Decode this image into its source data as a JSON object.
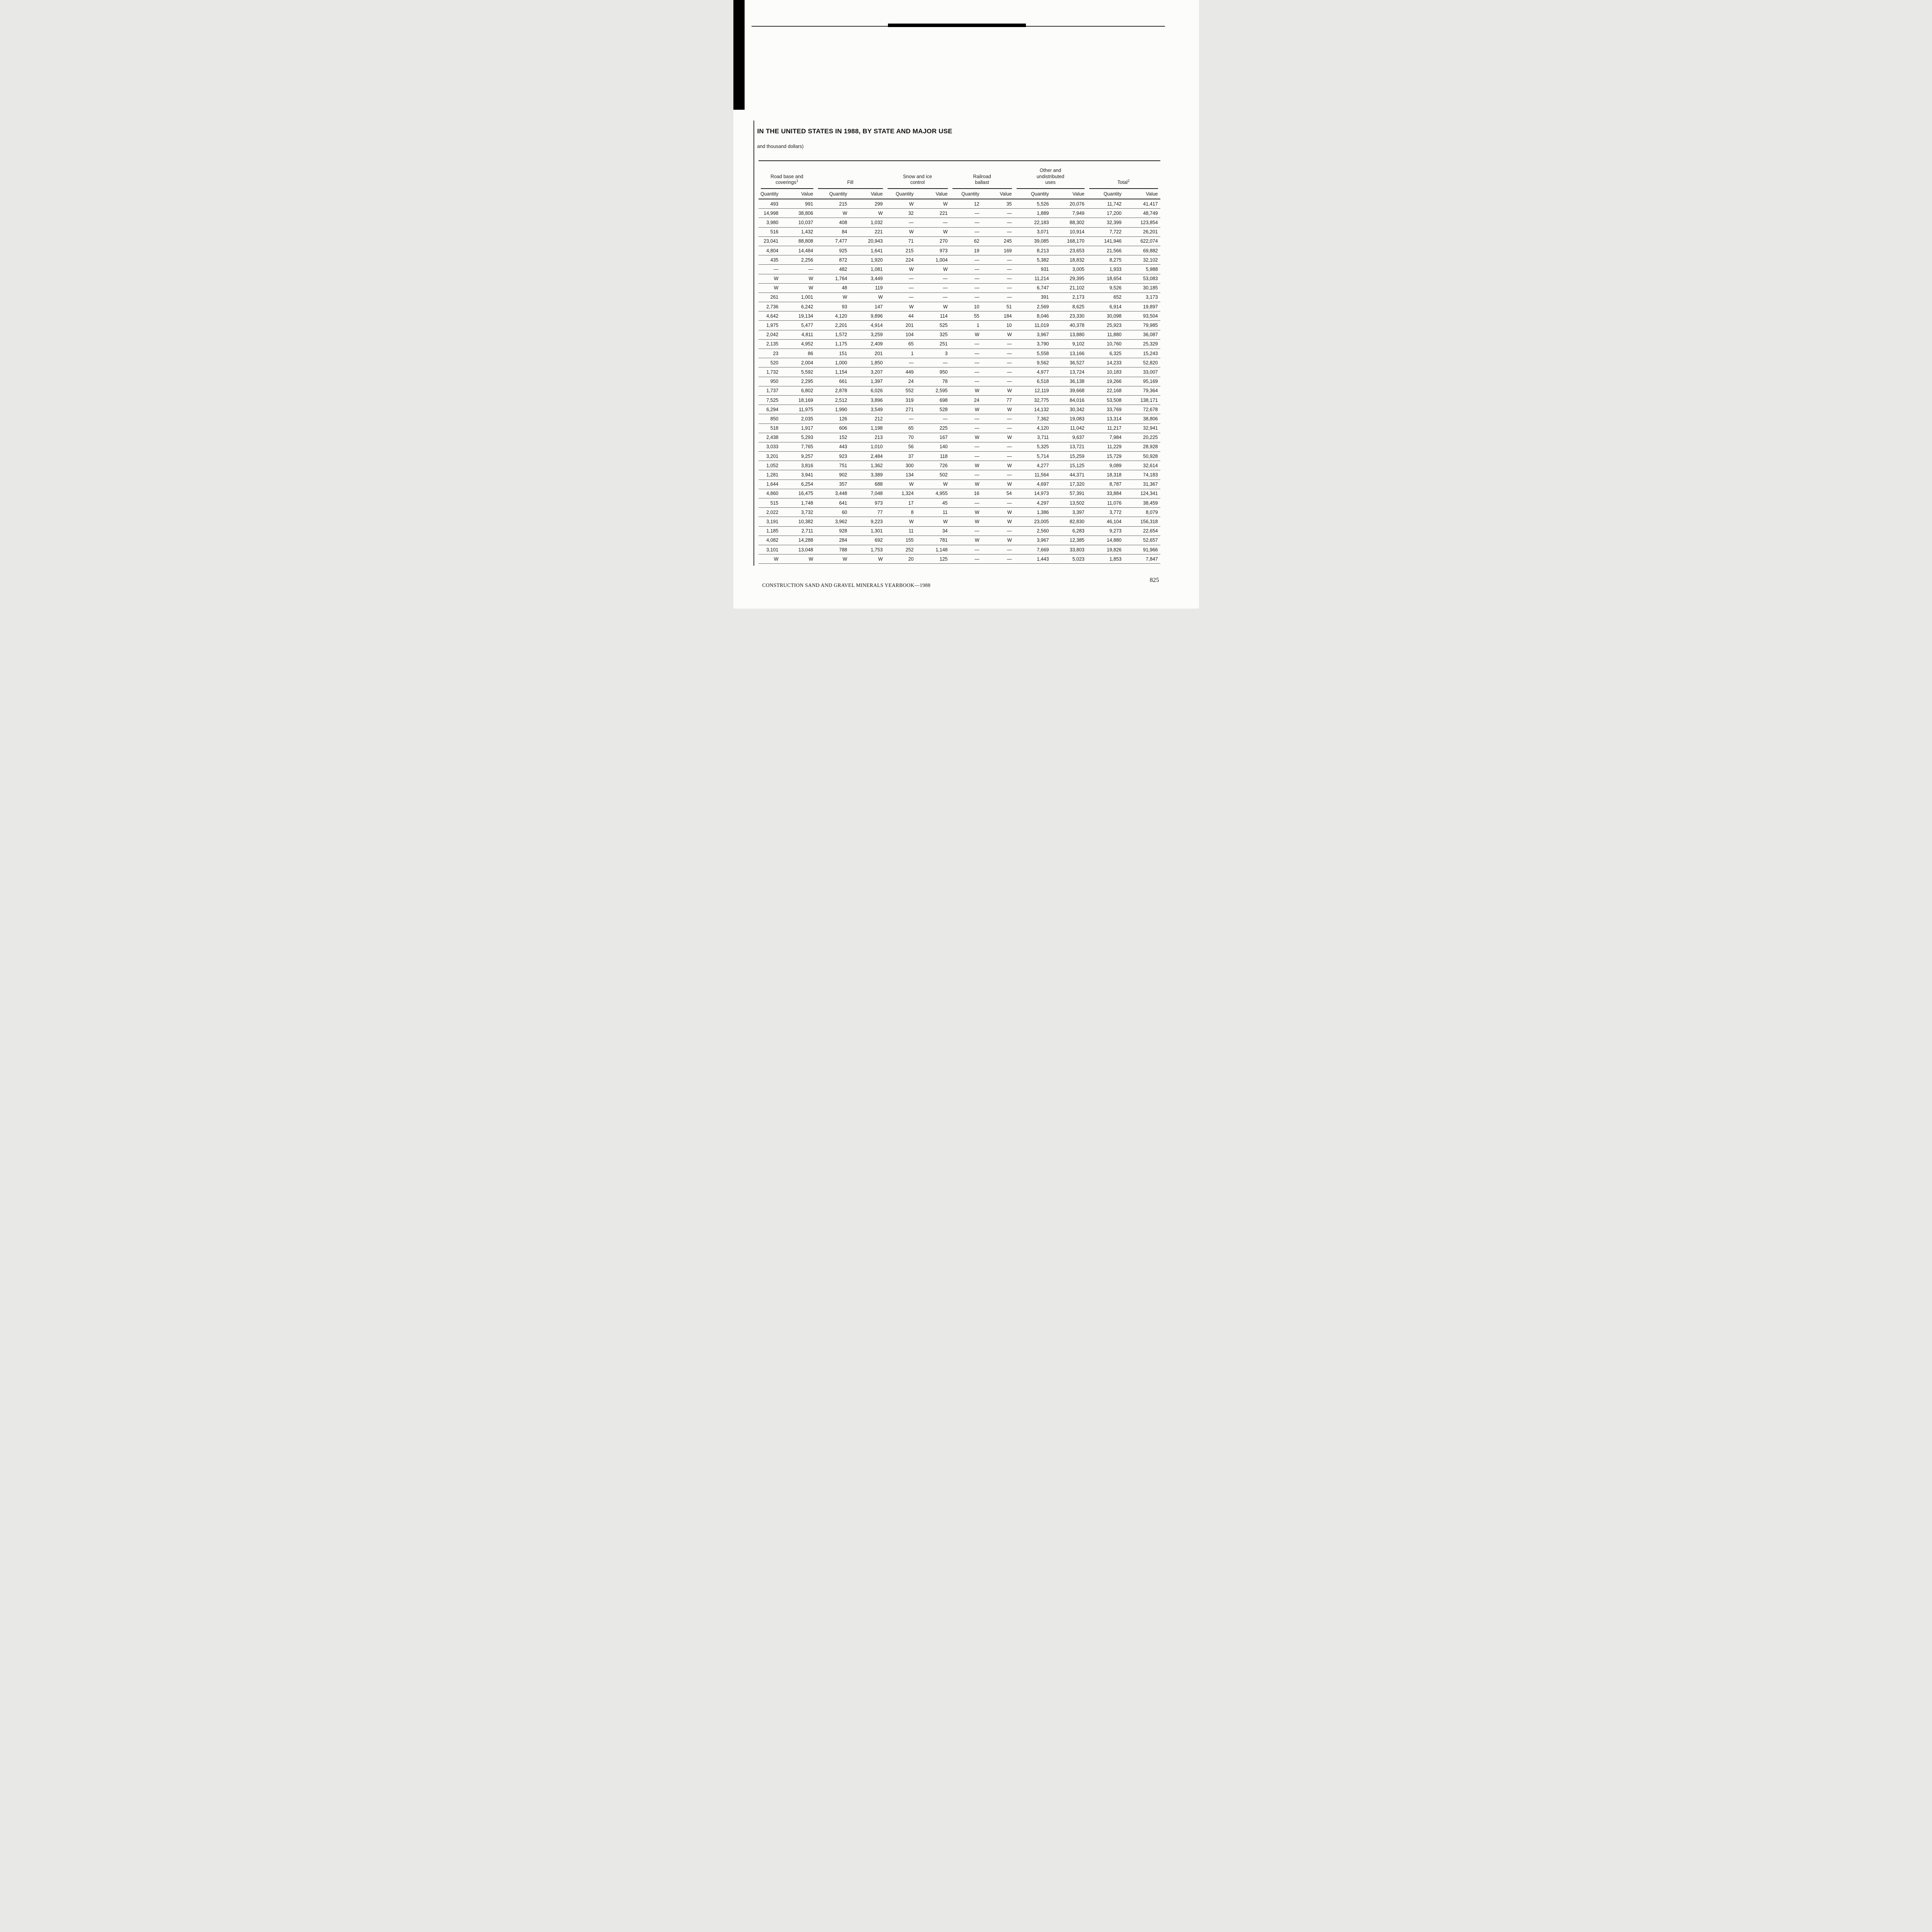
{
  "page": {
    "title": "IN THE UNITED STATES IN 1988, BY STATE AND MAJOR USE",
    "subtitle": "and thousand dollars)",
    "footer_left": "CONSTRUCTION SAND AND GRAVEL MINERALS YEARBOOK—1988",
    "page_number": "825"
  },
  "table": {
    "groups": [
      {
        "label": "Road base and coverings",
        "sup": "1"
      },
      {
        "label": "Fill"
      },
      {
        "label": "Snow and ice control"
      },
      {
        "label": "Railroad ballast"
      },
      {
        "label": "Other and undistributed uses"
      },
      {
        "label": "Total",
        "sup": "2"
      }
    ],
    "subheaders": [
      "Quantity",
      "Value"
    ],
    "rows": [
      [
        "493",
        "991",
        "215",
        "299",
        "W",
        "W",
        "12",
        "35",
        "5,526",
        "20,076",
        "11,742",
        "41,417"
      ],
      [
        "14,998",
        "38,806",
        "W",
        "W",
        "32",
        "221",
        "—",
        "—",
        "1,889",
        "7,949",
        "17,200",
        "48,749"
      ],
      [
        "3,980",
        "10,037",
        "408",
        "1,032",
        "—",
        "—",
        "—",
        "—",
        "22,183",
        "88,302",
        "32,399",
        "123,854"
      ],
      [
        "516",
        "1,432",
        "84",
        "221",
        "W",
        "W",
        "—",
        "—",
        "3,071",
        "10,914",
        "7,722",
        "26,201"
      ],
      [
        "23,041",
        "88,808",
        "7,477",
        "20,943",
        "71",
        "270",
        "62",
        "245",
        "39,085",
        "168,170",
        "141,946",
        "622,074"
      ],
      [
        "4,804",
        "14,484",
        "925",
        "1,641",
        "215",
        "973",
        "19",
        "169",
        "8,213",
        "23,653",
        "21,566",
        "69,882"
      ],
      [
        "435",
        "2,256",
        "872",
        "1,920",
        "224",
        "1,004",
        "—",
        "—",
        "5,382",
        "18,832",
        "8,275",
        "32,102"
      ],
      [
        "—",
        "—",
        "482",
        "1,081",
        "W",
        "W",
        "—",
        "—",
        "931",
        "3,005",
        "1,933",
        "5,988"
      ],
      [
        "W",
        "W",
        "1,764",
        "3,449",
        "—",
        "—",
        "—",
        "—",
        "11,214",
        "29,395",
        "18,654",
        "53,083"
      ],
      [
        "W",
        "W",
        "48",
        "119",
        "—",
        "—",
        "—",
        "—",
        "6,747",
        "21,102",
        "9,526",
        "30,185"
      ],
      [
        "261",
        "1,001",
        "W",
        "W",
        "—",
        "—",
        "—",
        "—",
        "391",
        "2,173",
        "652",
        "3,173"
      ],
      [
        "2,736",
        "6,242",
        "93",
        "147",
        "W",
        "W",
        "10",
        "51",
        "2,569",
        "8,625",
        "6,914",
        "19,897"
      ],
      [
        "4,642",
        "19,134",
        "4,120",
        "9,896",
        "44",
        "114",
        "55",
        "184",
        "8,046",
        "23,330",
        "30,098",
        "93,504"
      ],
      [
        "1,975",
        "5,477",
        "2,201",
        "4,914",
        "201",
        "525",
        "1",
        "10",
        "11,019",
        "40,378",
        "25,923",
        "79,985"
      ],
      [
        "2,042",
        "4,811",
        "1,572",
        "3,259",
        "104",
        "325",
        "W",
        "W",
        "3,967",
        "13,880",
        "11,880",
        "36,087"
      ],
      [
        "2,135",
        "4,952",
        "1,175",
        "2,409",
        "65",
        "251",
        "—",
        "—",
        "3,790",
        "9,102",
        "10,760",
        "25,329"
      ],
      [
        "23",
        "86",
        "151",
        "201",
        "1",
        "3",
        "—",
        "—",
        "5,558",
        "13,166",
        "6,325",
        "15,243"
      ],
      [
        "520",
        "2,004",
        "1,000",
        "1,850",
        "—",
        "—",
        "—",
        "—",
        "9,562",
        "36,527",
        "14,233",
        "52,820"
      ],
      [
        "1,732",
        "5,592",
        "1,154",
        "3,207",
        "449",
        "950",
        "—",
        "—",
        "4,977",
        "13,724",
        "10,183",
        "33,007"
      ],
      [
        "950",
        "2,295",
        "661",
        "1,397",
        "24",
        "78",
        "—",
        "—",
        "6,518",
        "36,138",
        "19,266",
        "95,169"
      ],
      [
        "1,737",
        "6,802",
        "2,878",
        "6,026",
        "552",
        "2,595",
        "W",
        "W",
        "12,119",
        "39,668",
        "22,168",
        "79,364"
      ],
      [
        "7,525",
        "18,169",
        "2,512",
        "3,896",
        "319",
        "698",
        "24",
        "77",
        "32,775",
        "84,016",
        "53,508",
        "138,171"
      ],
      [
        "6,294",
        "11,975",
        "1,990",
        "3,549",
        "271",
        "528",
        "W",
        "W",
        "14,132",
        "30,342",
        "33,769",
        "72,678"
      ],
      [
        "850",
        "2,035",
        "126",
        "212",
        "—",
        "—",
        "—",
        "—",
        "7,362",
        "19,083",
        "13,314",
        "38,806"
      ],
      [
        "518",
        "1,917",
        "606",
        "1,198",
        "65",
        "225",
        "—",
        "—",
        "4,120",
        "11,042",
        "11,217",
        "32,941"
      ],
      [
        "2,438",
        "5,293",
        "152",
        "213",
        "70",
        "167",
        "W",
        "W",
        "3,711",
        "9,637",
        "7,984",
        "20,225"
      ],
      [
        "3,033",
        "7,765",
        "443",
        "1,010",
        "56",
        "140",
        "—",
        "—",
        "5,325",
        "13,721",
        "11,229",
        "28,928"
      ],
      [
        "3,201",
        "9,257",
        "923",
        "2,484",
        "37",
        "118",
        "—",
        "—",
        "5,714",
        "15,259",
        "15,729",
        "50,928"
      ],
      [
        "1,052",
        "3,816",
        "751",
        "1,362",
        "300",
        "726",
        "W",
        "W",
        "4,277",
        "15,125",
        "9,089",
        "32,614"
      ],
      [
        "1,281",
        "3,941",
        "902",
        "3,389",
        "134",
        "502",
        "—",
        "—",
        "11,564",
        "44,371",
        "18,318",
        "74,183"
      ],
      [
        "1,644",
        "6,254",
        "357",
        "688",
        "W",
        "W",
        "W",
        "W",
        "4,697",
        "17,320",
        "8,787",
        "31,367"
      ],
      [
        "4,860",
        "16,475",
        "3,448",
        "7,048",
        "1,324",
        "4,955",
        "16",
        "54",
        "14,973",
        "57,391",
        "33,884",
        "124,341"
      ],
      [
        "515",
        "1,748",
        "641",
        "973",
        "17",
        "45",
        "—",
        "—",
        "4,297",
        "13,502",
        "11,076",
        "38,459"
      ],
      [
        "2,022",
        "3,732",
        "60",
        "77",
        "8",
        "11",
        "W",
        "W",
        "1,386",
        "3,397",
        "3,772",
        "8,079"
      ],
      [
        "3,191",
        "10,382",
        "3,962",
        "9,223",
        "W",
        "W",
        "W",
        "W",
        "23,005",
        "82,830",
        "46,104",
        "156,318"
      ],
      [
        "1,185",
        "2,711",
        "928",
        "1,301",
        "11",
        "34",
        "—",
        "—",
        "2,560",
        "6,283",
        "9,273",
        "22,654"
      ],
      [
        "4,082",
        "14,288",
        "284",
        "692",
        "155",
        "781",
        "W",
        "W",
        "3,967",
        "12,385",
        "14,880",
        "52,657"
      ],
      [
        "3,101",
        "13,048",
        "788",
        "1,753",
        "252",
        "1,148",
        "—",
        "—",
        "7,669",
        "33,803",
        "19,826",
        "91,966"
      ],
      [
        "W",
        "W",
        "W",
        "W",
        "20",
        "125",
        "—",
        "—",
        "1,443",
        "5,023",
        "1,853",
        "7,847"
      ]
    ]
  }
}
